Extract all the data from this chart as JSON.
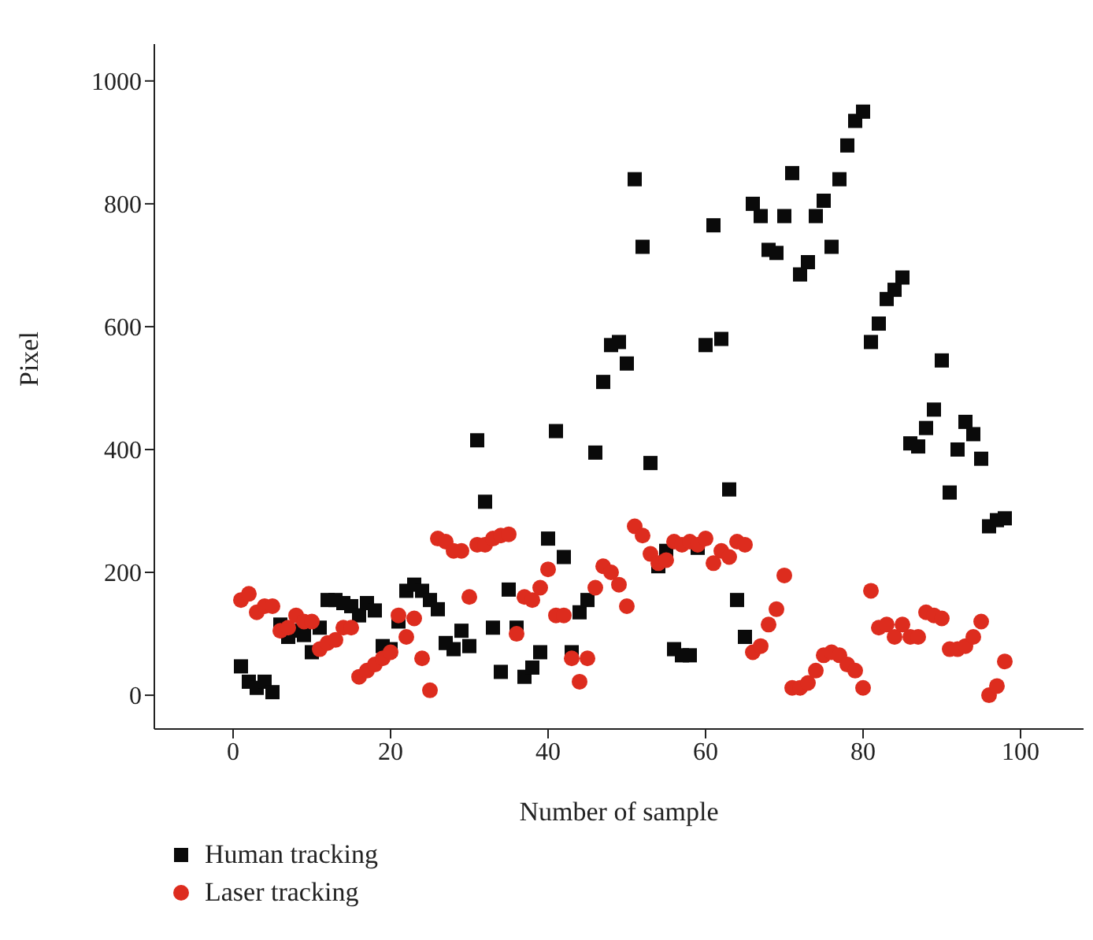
{
  "chart_data": {
    "type": "scatter",
    "xlabel": "Number of sample",
    "ylabel": "Pixel",
    "x": [
      1,
      2,
      3,
      4,
      5,
      6,
      7,
      8,
      9,
      10,
      11,
      12,
      13,
      14,
      15,
      16,
      17,
      18,
      19,
      20,
      21,
      22,
      23,
      24,
      25,
      26,
      27,
      28,
      29,
      30,
      31,
      32,
      33,
      34,
      35,
      36,
      37,
      38,
      39,
      40,
      41,
      42,
      43,
      44,
      45,
      46,
      47,
      48,
      49,
      50,
      51,
      52,
      53,
      54,
      55,
      56,
      57,
      58,
      59,
      60,
      61,
      62,
      63,
      64,
      65,
      66,
      67,
      68,
      69,
      70,
      71,
      72,
      73,
      74,
      75,
      76,
      77,
      78,
      79,
      80,
      81,
      82,
      83,
      84,
      85,
      86,
      87,
      88,
      89,
      90,
      91,
      92,
      93,
      94,
      95,
      96,
      97,
      98
    ],
    "series": [
      {
        "name": "Human tracking",
        "color": "#0a0a0a",
        "marker": "square",
        "values": [
          47,
          22,
          12,
          22,
          5,
          115,
          95,
          105,
          98,
          70,
          110,
          155,
          155,
          150,
          145,
          130,
          150,
          138,
          80,
          75,
          120,
          170,
          180,
          170,
          155,
          140,
          85,
          75,
          105,
          80,
          415,
          315,
          110,
          38,
          172,
          110,
          30,
          45,
          70,
          255,
          430,
          225,
          70,
          135,
          155,
          395,
          510,
          570,
          575,
          540,
          840,
          730,
          378,
          210,
          235,
          75,
          65,
          65,
          240,
          570,
          765,
          580,
          335,
          155,
          95,
          800,
          780,
          725,
          720,
          780,
          850,
          685,
          705,
          780,
          805,
          730,
          840,
          895,
          935,
          950,
          575,
          605,
          645,
          660,
          680,
          410,
          405,
          435,
          465,
          545,
          330,
          400,
          445,
          425,
          385,
          275,
          285,
          288
        ]
      },
      {
        "name": "Laser tracking",
        "color": "#dd2c1e",
        "marker": "circle",
        "values": [
          155,
          165,
          135,
          145,
          145,
          105,
          110,
          130,
          120,
          120,
          75,
          85,
          90,
          110,
          110,
          30,
          40,
          50,
          60,
          70,
          130,
          95,
          125,
          60,
          8,
          255,
          250,
          235,
          235,
          160,
          245,
          245,
          255,
          260,
          262,
          100,
          160,
          155,
          175,
          205,
          130,
          130,
          60,
          22,
          60,
          175,
          210,
          200,
          180,
          145,
          275,
          260,
          230,
          215,
          220,
          250,
          245,
          250,
          245,
          255,
          215,
          235,
          225,
          250,
          245,
          70,
          80,
          115,
          140,
          195,
          12,
          12,
          20,
          40,
          65,
          70,
          65,
          50,
          40,
          12,
          170,
          110,
          115,
          95,
          115,
          95,
          95,
          135,
          130,
          125,
          75,
          75,
          80,
          95,
          120,
          0,
          15,
          55
        ]
      }
    ],
    "xlim": [
      -10,
      108
    ],
    "xticks": [
      0,
      20,
      40,
      60,
      80,
      100
    ],
    "ylim": [
      -55,
      1060
    ],
    "yticks": [
      0,
      200,
      400,
      600,
      800,
      1000
    ],
    "grid": false,
    "legend": "bottom left"
  }
}
